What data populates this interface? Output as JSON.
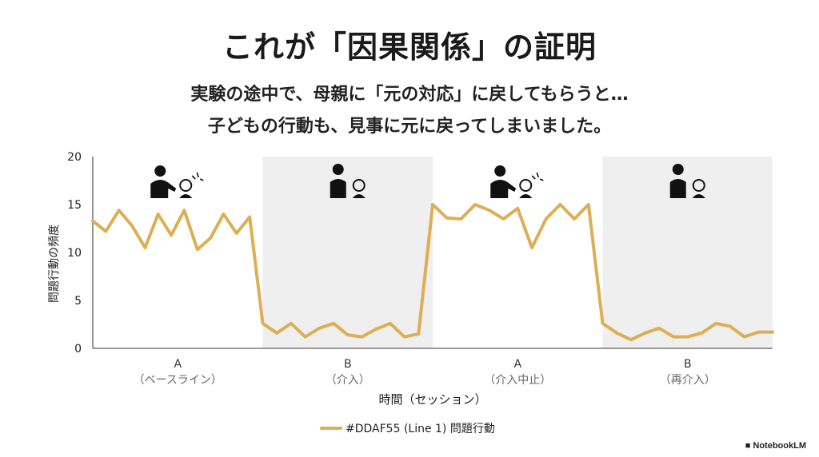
{
  "title": "これが「因果関係」の証明",
  "subtitle_lines": [
    "実験の途中で、母親に「元の対応」に戻してもらうと…",
    "子どもの行動も、見事に元に戻ってしまいました。"
  ],
  "watermark": "NotebookLM",
  "colors": {
    "line": "#DDAF55",
    "shade": "#efefef",
    "axis": "#333333"
  },
  "chart_data": {
    "type": "line",
    "xlabel": "時間（セッション）",
    "ylabel": "問題行動の頻度",
    "ylim": [
      0,
      20
    ],
    "yticks": [
      0,
      5,
      10,
      15,
      20
    ],
    "phases": [
      {
        "label": "A",
        "sublabel": "（ベースライン）",
        "shaded": false,
        "icon": "mother-attending-crying-child-icon"
      },
      {
        "label": "B",
        "sublabel": "（介入）",
        "shaded": true,
        "icon": "mother-ignoring-child-icon"
      },
      {
        "label": "A",
        "sublabel": "（介入中止）",
        "shaded": false,
        "icon": "mother-attending-crying-child-icon"
      },
      {
        "label": "B",
        "sublabel": "（再介入）",
        "shaded": true,
        "icon": "mother-ignoring-child-icon"
      }
    ],
    "series": [
      {
        "name": "#DDAF55 (Line 1) 問題行動",
        "color": "#DDAF55",
        "phase_values": [
          [
            13.3,
            12.2,
            14.4,
            12.8,
            10.5,
            14.0,
            11.8,
            14.4,
            10.3,
            11.5,
            14.0,
            12.0,
            13.7
          ],
          [
            2.6,
            1.6,
            2.6,
            1.2,
            2.1,
            2.6,
            1.4,
            1.2,
            2.0,
            2.6,
            1.2,
            1.5
          ],
          [
            15.0,
            13.6,
            13.5,
            15.0,
            14.4,
            13.5,
            14.6,
            10.5,
            13.5,
            15.0,
            13.5,
            15.0
          ],
          [
            2.6,
            1.6,
            0.9,
            1.6,
            2.1,
            1.2,
            1.2,
            1.6,
            2.6,
            2.3,
            1.2,
            1.7
          ]
        ]
      }
    ],
    "legend_position": "bottom-center",
    "grid": false
  }
}
